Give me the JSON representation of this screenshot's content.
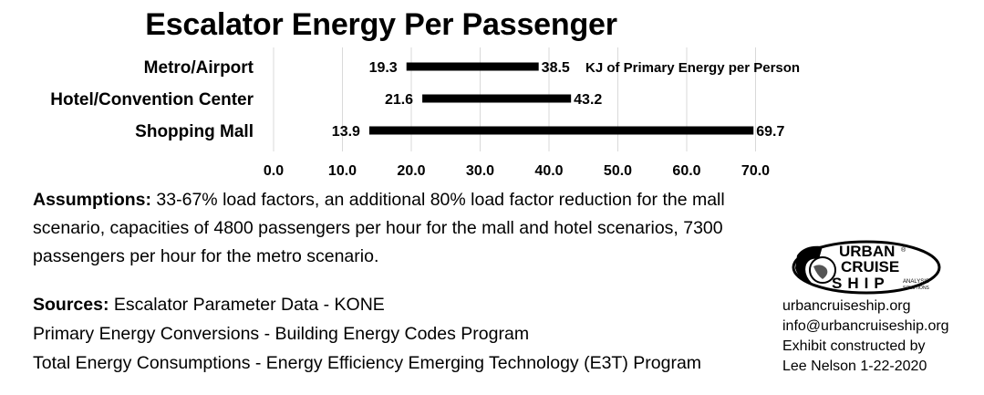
{
  "chart_data": {
    "type": "floating-bar",
    "title": "Escalator Energy Per Passenger",
    "categories": [
      "Metro/Airport",
      "Hotel/Convention Center",
      "Shopping Mall"
    ],
    "low": [
      19.3,
      21.6,
      13.9
    ],
    "high": [
      38.5,
      43.2,
      69.7
    ],
    "low_labels": [
      "19.3",
      "21.6",
      "13.9"
    ],
    "high_labels": [
      "38.5",
      "43.2",
      "69.7"
    ],
    "annotation": "KJ of Primary Energy per Person",
    "xlim": [
      0,
      70
    ],
    "xticks": [
      "0.0",
      "10.0",
      "20.0",
      "30.0",
      "40.0",
      "50.0",
      "60.0",
      "70.0"
    ],
    "grid": true,
    "bar_color": "#000000",
    "grid_color": "#d9d9d9"
  },
  "notes": {
    "assumptions_label": "Assumptions:",
    "assumptions_text": " 33-67% load factors, an additional 80% load factor reduction for the mall scenario, capacities of 4800 passengers per hour for the mall and hotel scenarios, 7300 passengers per hour for the metro scenario.",
    "sources_label": "Sources:",
    "sources_line1": " Escalator Parameter Data - KONE",
    "sources_line2": "Primary Energy Conversions - Building Energy Codes Program",
    "sources_line3": "Total Energy Consumptions - Energy Efficiency Emerging Technology (E3T) Program"
  },
  "logo": {
    "line1": "URBAN",
    "line2": "CRUISE",
    "line3": "SHIP",
    "tagline1": "ANALYSIS",
    "tagline2": "SOLUTIONS",
    "registered": "®"
  },
  "credits": {
    "website": "urbancruiseship.org",
    "email": "info@urbancruiseship.org",
    "constructed": "Exhibit constructed by",
    "author_date": "Lee Nelson 1-22-2020"
  }
}
